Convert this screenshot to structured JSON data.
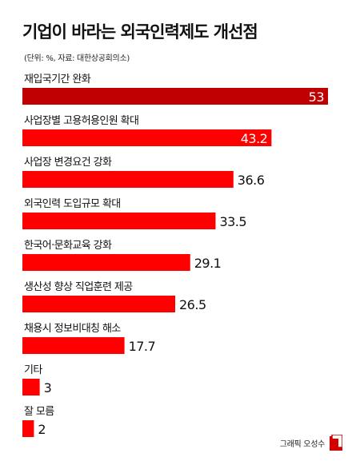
{
  "title": "기업이 바라는 외국인력제도 개선점",
  "subtitle": "(단위: %, 자료: 대한상공회의소)",
  "credit": "그래픽 오성수",
  "colors": {
    "bar": "#ff0000",
    "top_bar": "#c00000",
    "inside_label": "#ffffff",
    "outside_label": "#111111"
  },
  "chart_data": {
    "type": "bar",
    "orientation": "horizontal",
    "unit": "%",
    "categories": [
      "재입국기간 완화",
      "사업장별 고용허용인원 확대",
      "사업장 변경요건 강화",
      "외국인력 도입규모 확대",
      "한국어·문화교육 강화",
      "생산성 향상 직업훈련 제공",
      "채용시 정보비대칭 해소",
      "기타",
      "잘 모름"
    ],
    "values": [
      53,
      43.2,
      36.6,
      33.5,
      29.1,
      26.5,
      17.7,
      3,
      2
    ],
    "value_labels": [
      "53",
      "43.2",
      "36.6",
      "33.5",
      "29.1",
      "26.5",
      "17.7",
      "3",
      "2"
    ],
    "title": "기업이 바라는 외국인력제도 개선점",
    "subtitle": "(단위: %, 자료: 대한상공회의소)",
    "grid": false,
    "legend": "none"
  }
}
